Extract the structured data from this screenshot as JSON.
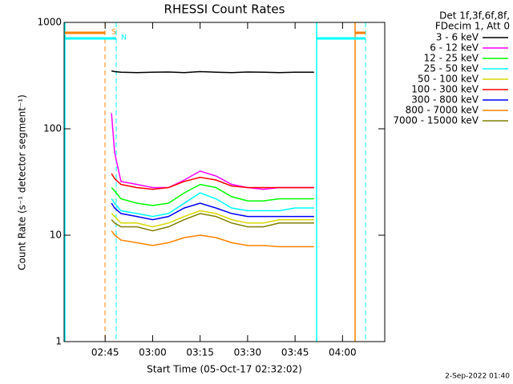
{
  "chart_data": {
    "type": "line",
    "title": "RHESSI Count Rates",
    "xlabel": "Start Time (05-Oct-17 02:32:02)",
    "ylabel": "Count Rate (s⁻¹ detector segment⁻¹)",
    "legend_header": [
      "Det 1f,3f,6f,8f,",
      "FDecim 1, Att 0"
    ],
    "legend": "right-outside",
    "footer": "2-Sep-2022 01:40",
    "annotations": [
      "S",
      "N"
    ],
    "log_y": true,
    "xlim": [
      "02:32:02",
      "04:13:20"
    ],
    "xticks": [
      "02:45",
      "03:00",
      "03:15",
      "03:30",
      "03:45",
      "04:00"
    ],
    "ylim": [
      1,
      1000
    ],
    "yticks": [
      1,
      10,
      100,
      1000
    ],
    "x": [
      "02:47",
      "02:48",
      "02:50",
      "02:55",
      "03:00",
      "03:05",
      "03:10",
      "03:15",
      "03:20",
      "03:25",
      "03:30",
      "03:35",
      "03:40",
      "03:45",
      "03:51"
    ],
    "series": [
      {
        "name": "3 - 6 keV",
        "color": "#000000",
        "values": [
          350,
          345,
          340,
          338,
          340,
          342,
          338,
          345,
          340,
          338,
          342,
          340,
          338,
          340,
          340
        ]
      },
      {
        "name": "6 - 12 keV",
        "color": "#ff00ff",
        "values": [
          140,
          60,
          32,
          30,
          28,
          28,
          33,
          40,
          36,
          30,
          28,
          27,
          28,
          28,
          28
        ]
      },
      {
        "name": "12 - 25 keV",
        "color": "#00ff00",
        "values": [
          28,
          26,
          22,
          20,
          19,
          20,
          25,
          30,
          28,
          23,
          21,
          21,
          22,
          22,
          22
        ]
      },
      {
        "name": "25 - 50 keV",
        "color": "#00ffff",
        "values": [
          22,
          20,
          17,
          16,
          15,
          16,
          20,
          25,
          22,
          18,
          17,
          17,
          17,
          18,
          18
        ]
      },
      {
        "name": "50 - 100 keV",
        "color": "#d8d800",
        "values": [
          16,
          15,
          13,
          13,
          12,
          13,
          15,
          17,
          16,
          14,
          13,
          13,
          14,
          14,
          14
        ]
      },
      {
        "name": "100 - 300 keV",
        "color": "#ff0000",
        "values": [
          38,
          34,
          30,
          28,
          27,
          28,
          32,
          35,
          33,
          29,
          28,
          28,
          28,
          28,
          28
        ]
      },
      {
        "name": "300 - 800 keV",
        "color": "#0000ff",
        "values": [
          20,
          18,
          16,
          15,
          14,
          15,
          18,
          20,
          18,
          16,
          15,
          15,
          15,
          15,
          15
        ]
      },
      {
        "name": "800 - 7000 keV",
        "color": "#ff8000",
        "values": [
          11,
          10,
          9,
          8.5,
          8,
          8.5,
          9.5,
          10,
          9.5,
          8.5,
          8,
          8,
          7.8,
          7.8,
          7.8
        ]
      },
      {
        "name": "7000 - 15000 keV",
        "color": "#808000",
        "values": [
          14,
          13,
          12,
          12,
          11,
          12,
          14,
          16,
          15,
          13,
          12,
          12,
          13,
          13,
          13
        ]
      }
    ]
  }
}
